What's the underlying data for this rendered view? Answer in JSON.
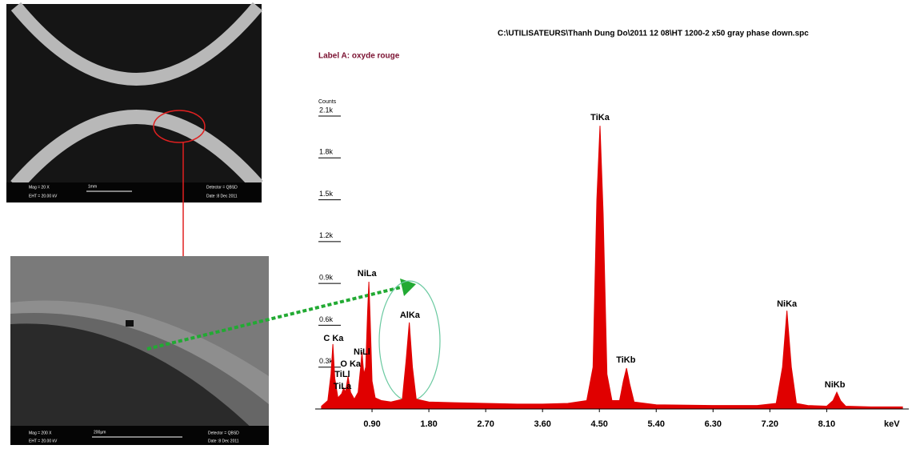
{
  "chart_data": {
    "type": "area",
    "title": "C:\\UTILISATEURS\\Thanh Dung Do\\2011 12 08\\HT 1200-2 x50 gray phase down.spc",
    "subtitle": "Label A: oxyde rouge",
    "y_label": "Counts",
    "x_label": "keV",
    "color": "#e00000",
    "xlim": [
      0,
      9.4
    ],
    "ylim": [
      0,
      2100
    ],
    "xticks": [
      {
        "value": 0.9,
        "label": "0.90"
      },
      {
        "value": 1.8,
        "label": "1.80"
      },
      {
        "value": 2.7,
        "label": "2.70"
      },
      {
        "value": 3.6,
        "label": "3.60"
      },
      {
        "value": 4.5,
        "label": "4.50"
      },
      {
        "value": 5.4,
        "label": "5.40"
      },
      {
        "value": 6.3,
        "label": "6.30"
      },
      {
        "value": 7.2,
        "label": "7.20"
      },
      {
        "value": 8.1,
        "label": "8.10"
      }
    ],
    "yticks": [
      {
        "value": 300,
        "label": "0.3k"
      },
      {
        "value": 600,
        "label": "0.6k"
      },
      {
        "value": 900,
        "label": "0.9k"
      },
      {
        "value": 1200,
        "label": "1.2k"
      },
      {
        "value": 1500,
        "label": "1.5k"
      },
      {
        "value": 1800,
        "label": "1.8k"
      },
      {
        "value": 2100,
        "label": "2.1k"
      }
    ],
    "x": [
      0.1,
      0.2,
      0.25,
      0.28,
      0.31,
      0.36,
      0.42,
      0.45,
      0.48,
      0.52,
      0.56,
      0.62,
      0.68,
      0.72,
      0.74,
      0.77,
      0.8,
      0.83,
      0.85,
      0.87,
      0.9,
      0.95,
      1.05,
      1.2,
      1.38,
      1.44,
      1.49,
      1.54,
      1.6,
      1.8,
      2.2,
      2.7,
      3.2,
      3.6,
      4.0,
      4.3,
      4.4,
      4.46,
      4.51,
      4.56,
      4.62,
      4.7,
      4.82,
      4.88,
      4.93,
      4.98,
      5.05,
      5.4,
      6.3,
      7.0,
      7.3,
      7.4,
      7.47,
      7.54,
      7.62,
      7.8,
      8.1,
      8.2,
      8.26,
      8.32,
      8.4,
      8.8,
      9.3
    ],
    "values": [
      20,
      60,
      250,
      465,
      220,
      80,
      110,
      150,
      120,
      235,
      120,
      70,
      120,
      300,
      407,
      250,
      300,
      700,
      912,
      650,
      200,
      80,
      60,
      50,
      70,
      350,
      620,
      300,
      70,
      50,
      45,
      40,
      35,
      35,
      40,
      60,
      300,
      1500,
      2030,
      1400,
      250,
      60,
      60,
      200,
      293,
      180,
      50,
      30,
      25,
      25,
      40,
      300,
      705,
      300,
      40,
      25,
      20,
      60,
      120,
      60,
      20,
      15,
      15
    ],
    "annotations": [
      {
        "text": "C Ka",
        "x": 0.29,
        "y": 505
      },
      {
        "text": "O Ka",
        "x": 0.56,
        "y": 321
      },
      {
        "text": "NiLl",
        "x": 0.74,
        "y": 407
      },
      {
        "text": "TiLl",
        "x": 0.43,
        "y": 247
      },
      {
        "text": "TiLa",
        "x": 0.43,
        "y": 161
      },
      {
        "text": "NiLa",
        "x": 0.82,
        "y": 970
      },
      {
        "text": "AlKa",
        "x": 1.5,
        "y": 671
      },
      {
        "text": "TiKa",
        "x": 4.51,
        "y": 2089
      },
      {
        "text": "TiKb",
        "x": 4.92,
        "y": 350
      },
      {
        "text": "NiKa",
        "x": 7.47,
        "y": 752
      },
      {
        "text": "NiKb",
        "x": 8.23,
        "y": 172
      }
    ]
  },
  "micrographs": [
    {
      "mag": "Mag =  20 X",
      "eht": "EHT = 20.00 kV",
      "scale": "1mm",
      "detector": "Detector = QBSD",
      "date": "Date :8 Dec 2011"
    },
    {
      "mag": "Mag =  200 X",
      "eht": "EHT = 20.00 kV",
      "scale": "200µm",
      "detector": "Detector = QBSD",
      "date": "Date :8 Dec 2011"
    }
  ]
}
